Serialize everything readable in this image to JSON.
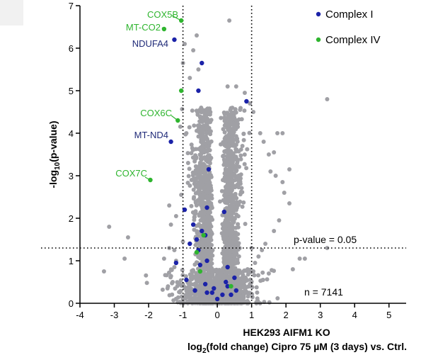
{
  "chart_data": {
    "type": "scatter",
    "title": "",
    "xlabel_line1": "HEK293 AIFM1 KO",
    "xlabel_line2_parts": [
      "log",
      "2",
      "(fold change) Cipro 75 µM (3 days) vs. Ctrl."
    ],
    "ylabel_parts": [
      "-log",
      "10",
      "(p-value)"
    ],
    "xlim": [
      -4,
      5.5
    ],
    "ylim": [
      0,
      7
    ],
    "x_ticks": [
      -4,
      -3,
      -2,
      -1,
      0,
      1,
      2,
      3,
      4,
      5
    ],
    "x_tick_labels": [
      "-4",
      "-3",
      "-2",
      "-1",
      "0",
      "1",
      "2",
      "3",
      "4",
      "5"
    ],
    "y_ticks": [
      0,
      1,
      2,
      3,
      4,
      5,
      6,
      7
    ],
    "y_tick_labels": [
      "0",
      "1",
      "2",
      "3",
      "4",
      "5",
      "6",
      "7"
    ],
    "threshold_lines": {
      "vertical_fold_change": [
        -1,
        1
      ],
      "horizontal_neg_log10_p": 1.3,
      "label": "p-value = 0.05"
    },
    "annotation_n": "n = 7141",
    "colors": {
      "background_points": "#a0a0a5",
      "complex_I": "#1b22a8",
      "complex_IV": "#2fb52f",
      "complex_I_label": "#1f2a78",
      "complex_IV_label": "#2fb52f",
      "axis": "#000000"
    },
    "legend": {
      "position": "top-right",
      "entries": [
        {
          "name": "Complex I",
          "color": "#1b22a8"
        },
        {
          "name": "Complex IV",
          "color": "#2fb52f"
        }
      ]
    },
    "series": [
      {
        "name": "Complex I",
        "color": "#1b22a8",
        "points": [
          [
            -1.25,
            6.2
          ],
          [
            -0.45,
            5.65
          ],
          [
            -0.55,
            5.0
          ],
          [
            0.85,
            4.75
          ],
          [
            -1.35,
            3.8
          ],
          [
            -0.25,
            3.15
          ],
          [
            -0.95,
            2.2
          ],
          [
            -0.3,
            2.25
          ],
          [
            0.2,
            2.15
          ],
          [
            -0.7,
            1.85
          ],
          [
            -0.45,
            1.7
          ],
          [
            -0.35,
            1.6
          ],
          [
            -0.6,
            1.5
          ],
          [
            -0.8,
            1.4
          ],
          [
            -0.55,
            1.25
          ],
          [
            -0.3,
            1.0
          ],
          [
            -0.5,
            0.9
          ],
          [
            0.3,
            0.85
          ],
          [
            -0.9,
            0.55
          ],
          [
            -0.35,
            0.45
          ],
          [
            0.5,
            0.6
          ],
          [
            -0.1,
            0.35
          ],
          [
            0.3,
            0.4
          ],
          [
            -0.15,
            0.25
          ],
          [
            0.15,
            0.2
          ],
          [
            0.4,
            0.2
          ],
          [
            -0.3,
            0.25
          ],
          [
            0.0,
            0.1
          ],
          [
            -0.65,
            0.3
          ],
          [
            0.55,
            0.3
          ],
          [
            -1.2,
            0.95
          ],
          [
            0.25,
            0.5
          ]
        ]
      },
      {
        "name": "Complex IV",
        "color": "#2fb52f",
        "points": [
          [
            -1.05,
            6.65
          ],
          [
            -1.55,
            6.45
          ],
          [
            -1.05,
            5.0
          ],
          [
            -1.15,
            4.3
          ],
          [
            -1.95,
            2.9
          ],
          [
            -0.4,
            1.6
          ],
          [
            -0.6,
            1.2
          ],
          [
            -0.5,
            0.75
          ],
          [
            0.4,
            0.4
          ]
        ]
      }
    ],
    "labeled_genes": [
      {
        "label": "COX5B",
        "complex": "Complex IV",
        "x": -1.05,
        "y": 6.65
      },
      {
        "label": "MT-CO2",
        "complex": "Complex IV",
        "x": -1.55,
        "y": 6.45
      },
      {
        "label": "NDUFA4",
        "complex": "Complex I",
        "x": -1.25,
        "y": 6.2
      },
      {
        "label": "COX6C",
        "complex": "Complex IV",
        "x": -1.15,
        "y": 4.3
      },
      {
        "label": "MT-ND4",
        "complex": "Complex I",
        "x": -1.35,
        "y": 3.8
      },
      {
        "label": "COX7C",
        "complex": "Complex IV",
        "x": -1.95,
        "y": 2.9
      }
    ],
    "background_outliers": [
      [
        -3.3,
        0.75
      ],
      [
        -3.15,
        1.8
      ],
      [
        -2.7,
        1.05
      ],
      [
        -2.6,
        1.55
      ],
      [
        -1.55,
        1.05
      ],
      [
        -1.4,
        1.3
      ],
      [
        -1.35,
        1.85
      ],
      [
        -1.3,
        0.5
      ],
      [
        -1.25,
        1.25
      ],
      [
        -1.2,
        2.05
      ],
      [
        -1.1,
        0.45
      ],
      [
        -1.05,
        2.55
      ],
      [
        -1.0,
        5.65
      ],
      [
        -0.95,
        6.1
      ],
      [
        -1.25,
        0.85
      ],
      [
        -1.0,
        1.45
      ],
      [
        -1.2,
        1.0
      ],
      [
        -0.9,
        4.0
      ],
      [
        -0.85,
        3.3
      ],
      [
        -0.8,
        5.3
      ],
      [
        -0.75,
        2.9
      ],
      [
        -0.6,
        6.3
      ],
      [
        0.35,
        6.65
      ],
      [
        0.3,
        5.1
      ],
      [
        0.55,
        5.1
      ],
      [
        0.8,
        4.95
      ],
      [
        0.95,
        4.7
      ],
      [
        1.05,
        4.5
      ],
      [
        1.25,
        4.0
      ],
      [
        1.35,
        3.8
      ],
      [
        1.5,
        3.5
      ],
      [
        1.55,
        3.1
      ],
      [
        1.7,
        3.0
      ],
      [
        1.9,
        2.85
      ],
      [
        1.95,
        2.6
      ],
      [
        2.1,
        3.15
      ],
      [
        2.1,
        2.35
      ],
      [
        1.8,
        1.95
      ],
      [
        1.65,
        1.7
      ],
      [
        1.4,
        1.4
      ],
      [
        1.3,
        1.25
      ],
      [
        1.2,
        1.1
      ],
      [
        1.1,
        0.95
      ],
      [
        1.05,
        0.75
      ],
      [
        1.5,
        0.7
      ],
      [
        2.2,
        0.8
      ],
      [
        2.4,
        1.05
      ],
      [
        2.55,
        1.05
      ],
      [
        3.2,
        1.3
      ],
      [
        3.2,
        4.8
      ],
      [
        1.9,
        4.0
      ],
      [
        1.75,
        4.0
      ],
      [
        -1.45,
        0.35
      ],
      [
        -1.4,
        2.3
      ],
      [
        -0.7,
        5.95
      ],
      [
        -0.55,
        5.5
      ],
      [
        1.65,
        3.55
      ],
      [
        1.0,
        1.3
      ]
    ],
    "background_generated_count_note": "remaining points form a dense volcano cloud centered near x = ±0.25"
  }
}
